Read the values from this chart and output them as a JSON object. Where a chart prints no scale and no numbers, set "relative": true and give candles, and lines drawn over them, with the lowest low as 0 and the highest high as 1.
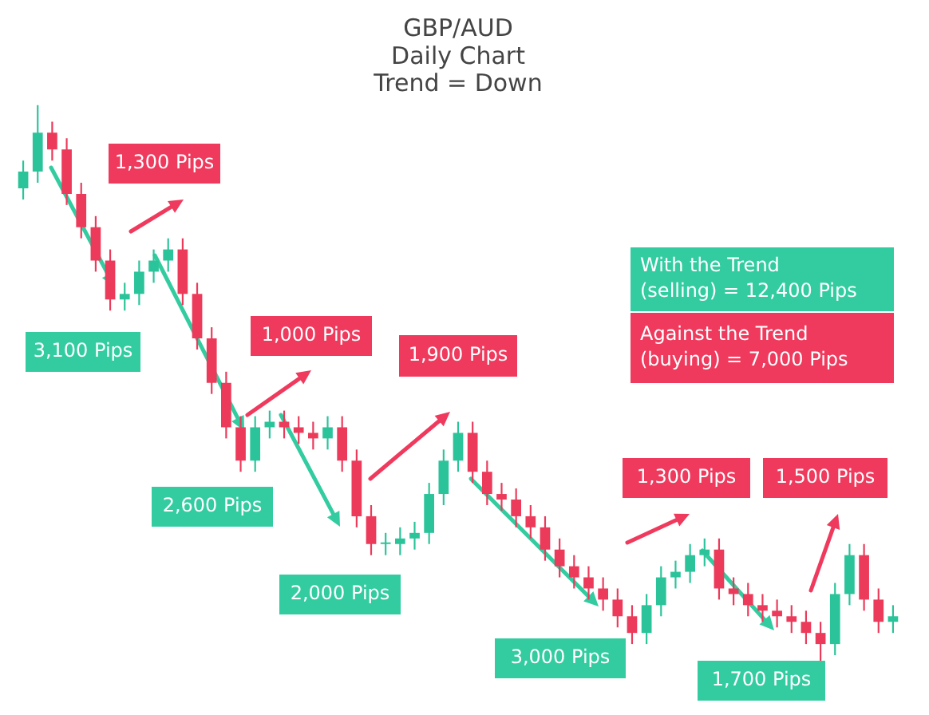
{
  "chart_data": {
    "type": "candlestick",
    "title": "GBP/AUD\nDaily Chart\nTrend = Down",
    "relative": true,
    "categories": [
      null,
      null,
      null,
      null,
      null,
      null,
      null,
      null,
      null,
      null,
      null,
      null,
      null,
      null,
      null,
      null,
      null,
      null,
      null,
      null,
      null,
      null,
      null,
      null,
      null,
      null,
      null,
      null,
      null,
      null,
      null,
      null,
      null,
      null,
      null,
      null,
      null,
      null,
      null,
      null,
      null,
      null,
      null,
      null,
      null,
      null,
      null,
      null,
      null,
      null,
      null,
      null,
      null,
      null,
      null,
      null,
      null,
      null,
      null,
      null,
      null
    ],
    "ohlc": [
      [
        0.85,
        0.9,
        0.83,
        0.88
      ],
      [
        0.88,
        1.0,
        0.86,
        0.95
      ],
      [
        0.95,
        0.97,
        0.9,
        0.92
      ],
      [
        0.92,
        0.94,
        0.82,
        0.84
      ],
      [
        0.84,
        0.86,
        0.76,
        0.78
      ],
      [
        0.78,
        0.8,
        0.7,
        0.72
      ],
      [
        0.72,
        0.74,
        0.63,
        0.65
      ],
      [
        0.65,
        0.68,
        0.63,
        0.66
      ],
      [
        0.66,
        0.72,
        0.64,
        0.7
      ],
      [
        0.7,
        0.74,
        0.68,
        0.72
      ],
      [
        0.72,
        0.76,
        0.7,
        0.74
      ],
      [
        0.74,
        0.76,
        0.64,
        0.66
      ],
      [
        0.66,
        0.68,
        0.56,
        0.58
      ],
      [
        0.58,
        0.6,
        0.48,
        0.5
      ],
      [
        0.5,
        0.52,
        0.4,
        0.42
      ],
      [
        0.42,
        0.44,
        0.34,
        0.36
      ],
      [
        0.36,
        0.44,
        0.34,
        0.42
      ],
      [
        0.42,
        0.45,
        0.4,
        0.43
      ],
      [
        0.43,
        0.45,
        0.4,
        0.42
      ],
      [
        0.42,
        0.44,
        0.39,
        0.41
      ],
      [
        0.41,
        0.43,
        0.38,
        0.4
      ],
      [
        0.4,
        0.44,
        0.38,
        0.42
      ],
      [
        0.42,
        0.44,
        0.34,
        0.36
      ],
      [
        0.36,
        0.38,
        0.24,
        0.26
      ],
      [
        0.26,
        0.28,
        0.19,
        0.21
      ],
      [
        0.21,
        0.23,
        0.19,
        0.21
      ],
      [
        0.21,
        0.24,
        0.19,
        0.22
      ],
      [
        0.22,
        0.25,
        0.2,
        0.23
      ],
      [
        0.23,
        0.32,
        0.21,
        0.3
      ],
      [
        0.3,
        0.38,
        0.28,
        0.36
      ],
      [
        0.36,
        0.43,
        0.34,
        0.41
      ],
      [
        0.41,
        0.43,
        0.32,
        0.34
      ],
      [
        0.34,
        0.36,
        0.28,
        0.3
      ],
      [
        0.3,
        0.32,
        0.27,
        0.29
      ],
      [
        0.29,
        0.31,
        0.24,
        0.26
      ],
      [
        0.26,
        0.28,
        0.22,
        0.24
      ],
      [
        0.24,
        0.26,
        0.18,
        0.2
      ],
      [
        0.2,
        0.22,
        0.15,
        0.17
      ],
      [
        0.17,
        0.19,
        0.13,
        0.15
      ],
      [
        0.15,
        0.17,
        0.11,
        0.13
      ],
      [
        0.13,
        0.15,
        0.09,
        0.11
      ],
      [
        0.11,
        0.13,
        0.06,
        0.08
      ],
      [
        0.08,
        0.1,
        0.03,
        0.05
      ],
      [
        0.05,
        0.12,
        0.03,
        0.1
      ],
      [
        0.1,
        0.17,
        0.08,
        0.15
      ],
      [
        0.15,
        0.18,
        0.13,
        0.16
      ],
      [
        0.16,
        0.21,
        0.14,
        0.19
      ],
      [
        0.19,
        0.22,
        0.17,
        0.2
      ],
      [
        0.2,
        0.22,
        0.11,
        0.13
      ],
      [
        0.13,
        0.15,
        0.1,
        0.12
      ],
      [
        0.12,
        0.14,
        0.08,
        0.1
      ],
      [
        0.1,
        0.12,
        0.07,
        0.09
      ],
      [
        0.09,
        0.11,
        0.06,
        0.08
      ],
      [
        0.08,
        0.1,
        0.05,
        0.07
      ],
      [
        0.07,
        0.09,
        0.03,
        0.05
      ],
      [
        0.05,
        0.07,
        0.0,
        0.03
      ],
      [
        0.03,
        0.14,
        0.01,
        0.12
      ],
      [
        0.12,
        0.21,
        0.1,
        0.19
      ],
      [
        0.19,
        0.21,
        0.09,
        0.11
      ],
      [
        0.11,
        0.13,
        0.05,
        0.07
      ],
      [
        0.07,
        0.1,
        0.05,
        0.08
      ]
    ],
    "annotations": [
      "3,100 Pips",
      "1,300 Pips",
      "2,600 Pips",
      "1,000 Pips",
      "2,000 Pips",
      "1,900 Pips",
      "3,000 Pips",
      "1,300 Pips",
      "1,700 Pips",
      "1,500 Pips",
      "With the Trend\n(selling) = 12,400 Pips",
      "Against the Trend\n(buying) = 7,000 Pips"
    ]
  }
}
